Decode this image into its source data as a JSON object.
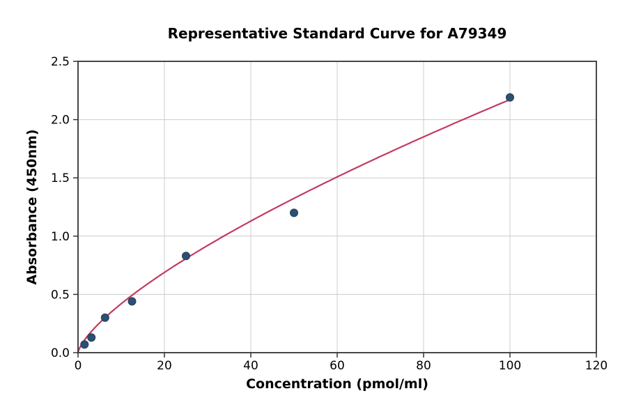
{
  "chart_data": {
    "type": "scatter",
    "title": "Representative Standard Curve for A79349",
    "xlabel": "Concentration (pmol/ml)",
    "ylabel": "Absorbance (450nm)",
    "xlim": [
      0,
      120
    ],
    "ylim": [
      0,
      2.5
    ],
    "x_tick_labels": [
      "0",
      "20",
      "40",
      "60",
      "80",
      "100",
      "120"
    ],
    "y_tick_labels": [
      "0.0",
      "0.5",
      "1.0",
      "1.5",
      "2.0",
      "2.5"
    ],
    "grid": true,
    "legend": "none",
    "points": [
      {
        "x": 1.5,
        "y": 0.07
      },
      {
        "x": 3.1,
        "y": 0.13
      },
      {
        "x": 6.25,
        "y": 0.3
      },
      {
        "x": 12.5,
        "y": 0.44
      },
      {
        "x": 25,
        "y": 0.83
      },
      {
        "x": 50,
        "y": 1.2
      },
      {
        "x": 100,
        "y": 2.19
      }
    ],
    "fit_curve": {
      "type": "power",
      "a": 0.0812,
      "b": 0.7136,
      "x_start": 0,
      "x_end": 100
    },
    "colors": {
      "marker_fill": "#2c4f72",
      "marker_edge": "#23405d",
      "fit_line": "#c23a60",
      "grid": "#cccccc",
      "spine": "#333333",
      "text": "#000000",
      "background": "#ffffff"
    }
  }
}
